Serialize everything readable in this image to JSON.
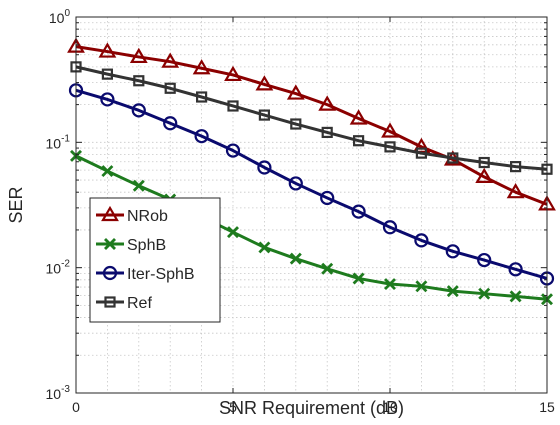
{
  "chart_data": {
    "type": "line",
    "title": "",
    "xlabel": "SNR Requirement (dB)",
    "ylabel": "SER",
    "xlim": [
      0,
      15
    ],
    "ylim": [
      0.001,
      1
    ],
    "yscale": "log",
    "grid": true,
    "legend_position": "bottom-left",
    "x_ticks": [
      "0",
      "5",
      "10",
      "15"
    ],
    "y_ticks": [
      {
        "base": "10",
        "exp": "-3"
      },
      {
        "base": "10",
        "exp": "-2"
      },
      {
        "base": "10",
        "exp": "-1"
      },
      {
        "base": "10",
        "exp": "0"
      }
    ],
    "x": [
      0,
      1,
      2,
      3,
      4,
      5,
      6,
      7,
      8,
      9,
      10,
      11,
      12,
      13,
      14,
      15
    ],
    "series": [
      {
        "name": "NRob",
        "color": "#8b0000",
        "marker": "triangle",
        "values": [
          0.58,
          0.53,
          0.48,
          0.44,
          0.39,
          0.345,
          0.29,
          0.245,
          0.2,
          0.155,
          0.122,
          0.092,
          0.073,
          0.053,
          0.04,
          0.032
        ]
      },
      {
        "name": "SphB",
        "color": "#1e7b1e",
        "marker": "x",
        "values": [
          0.078,
          0.059,
          0.045,
          0.035,
          0.0255,
          0.0192,
          0.0145,
          0.0118,
          0.0098,
          0.0082,
          0.0074,
          0.0071,
          0.0065,
          0.0062,
          0.0059,
          0.0056
        ]
      },
      {
        "name": "Iter-SphB",
        "color": "#0a0a6e",
        "marker": "circle",
        "values": [
          0.26,
          0.22,
          0.18,
          0.142,
          0.112,
          0.086,
          0.063,
          0.047,
          0.036,
          0.028,
          0.021,
          0.0165,
          0.0135,
          0.0115,
          0.0097,
          0.0082
        ]
      },
      {
        "name": "Ref",
        "color": "#333333",
        "marker": "square",
        "values": [
          0.4,
          0.35,
          0.31,
          0.27,
          0.23,
          0.195,
          0.165,
          0.14,
          0.12,
          0.103,
          0.092,
          0.082,
          0.075,
          0.069,
          0.064,
          0.061
        ]
      }
    ]
  }
}
